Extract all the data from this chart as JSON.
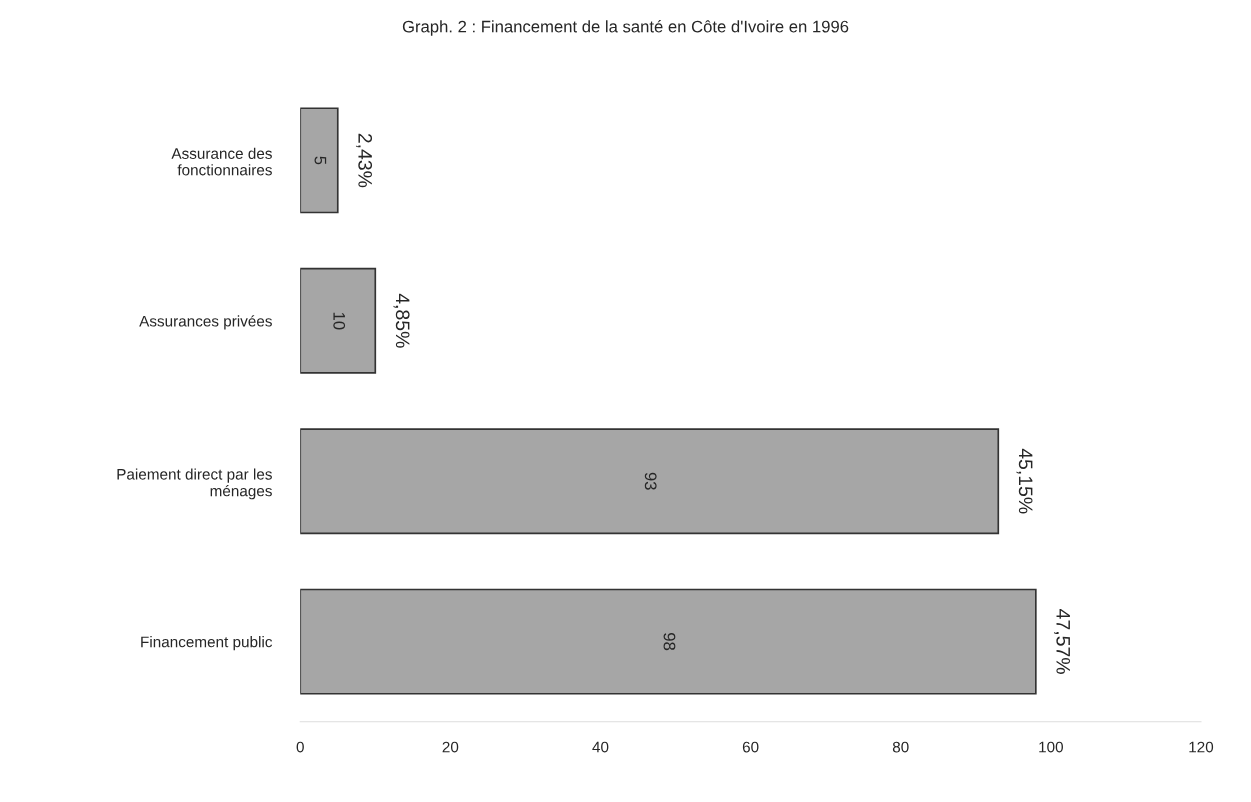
{
  "chart_data": {
    "type": "bar",
    "orientation": "horizontal",
    "title": "Graph. 2 : Financement de la santé en Côte d'Ivoire en 1996",
    "categories": [
      "Assurance des\nfonctionnaires",
      "Assurances privées",
      "Paiement direct par les\nménages",
      "Financement public"
    ],
    "values": [
      5,
      10,
      93,
      98
    ],
    "color": "#a6a6a6",
    "data_labels": true,
    "xlim": [
      0,
      120
    ],
    "xticks": [
      0,
      20,
      40,
      60,
      80,
      100,
      120
    ],
    "grid": false,
    "legend": false,
    "annotations": [
      {
        "text": "2,43%",
        "x": 5,
        "y": "Assurance des\nfonctionnaires"
      },
      {
        "text": "4,85%",
        "x": 10,
        "y": "Assurances privées"
      },
      {
        "text": "45,15%",
        "x": 93,
        "y": "Paiement direct par les\nménages"
      },
      {
        "text": "47,57%",
        "x": 98,
        "y": "Financement public"
      }
    ]
  }
}
